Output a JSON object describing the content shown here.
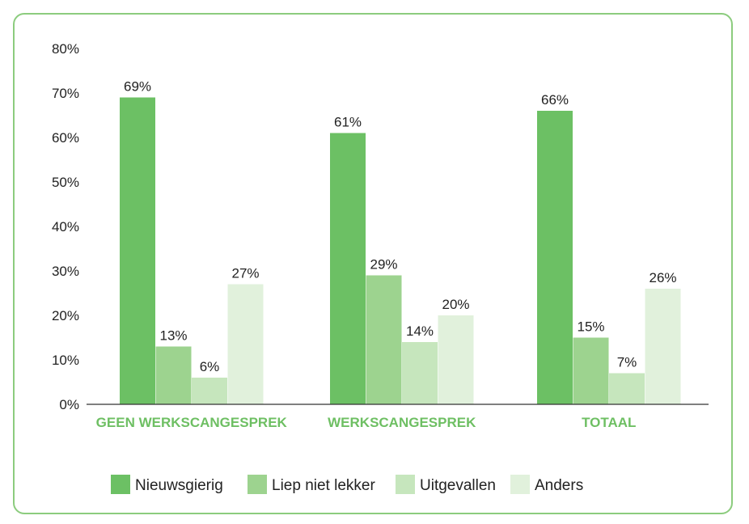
{
  "chart_data": {
    "type": "bar",
    "title": "",
    "xlabel": "",
    "ylabel": "",
    "ylim": [
      0,
      80
    ],
    "yticks": [
      "0%",
      "10%",
      "20%",
      "30%",
      "40%",
      "50%",
      "60%",
      "70%",
      "80%"
    ],
    "categories": [
      "GEEN WERKSCANGESPREK",
      "WERKSCANGESPREK",
      "TOTAAL"
    ],
    "series": [
      {
        "name": "Nieuwsgierig",
        "values": [
          69,
          61,
          66
        ],
        "labels": [
          "69%",
          "61%",
          "66%"
        ],
        "color": "#6cc064"
      },
      {
        "name": "Liep niet lekker",
        "values": [
          13,
          29,
          15
        ],
        "labels": [
          "13%",
          "29%",
          "15%"
        ],
        "color": "#9dd38f"
      },
      {
        "name": "Uitgevallen",
        "values": [
          6,
          14,
          7
        ],
        "labels": [
          "6%",
          "14%",
          "7%"
        ],
        "color": "#c6e6bd"
      },
      {
        "name": "Anders",
        "values": [
          27,
          20,
          26
        ],
        "labels": [
          "27%",
          "20%",
          "26%"
        ],
        "color": "#e1f1dc"
      }
    ],
    "legend_position": "bottom",
    "grid": false
  }
}
